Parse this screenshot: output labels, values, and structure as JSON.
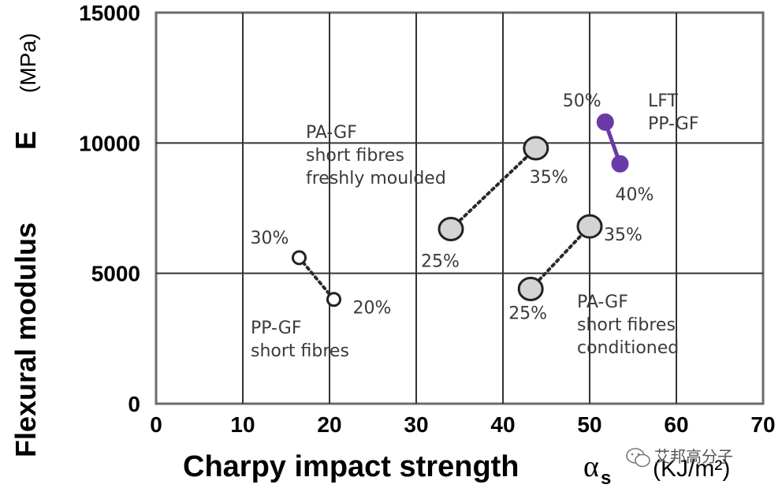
{
  "chart_data": {
    "type": "scatter",
    "xlabel": "Charpy impact strength",
    "xlabel_symbol": "α",
    "xlabel_symbol_sub": "s",
    "xlabel_unit": "(KJ/m²)",
    "ylabel": "Flexural modulus",
    "ylabel_symbol": "E",
    "ylabel_unit": "(MPa)",
    "xlim": [
      0,
      70
    ],
    "ylim": [
      0,
      15000
    ],
    "xticks": [
      0,
      10,
      20,
      30,
      40,
      50,
      60,
      70
    ],
    "yticks": [
      0,
      5000,
      10000,
      15000
    ],
    "xtick_labels": [
      "0",
      "10",
      "20",
      "30",
      "40",
      "50",
      "60",
      "70"
    ],
    "ytick_labels": [
      "0",
      "5000",
      "10000",
      "15000"
    ],
    "grid": true,
    "series": [
      {
        "name": "PP-GF short fibres",
        "label_lines": [
          "PP-GF",
          "short fibres"
        ],
        "style": "dotted",
        "color": "#2a2a2a",
        "marker_fill": "#ffffff",
        "marker_size": "small",
        "points": [
          {
            "x": 16.5,
            "y": 5600,
            "label": "30%"
          },
          {
            "x": 20.5,
            "y": 4000,
            "label": "20%"
          }
        ]
      },
      {
        "name": "PA-GF short fibres freshly moulded",
        "label_lines": [
          "PA-GF",
          "short fibres",
          "freshly moulded"
        ],
        "style": "dotted",
        "color": "#2a2a2a",
        "marker_fill": "#d4d4d4",
        "marker_size": "large",
        "points": [
          {
            "x": 34.0,
            "y": 6700,
            "label": "25%"
          },
          {
            "x": 43.8,
            "y": 9800,
            "label": "35%"
          }
        ]
      },
      {
        "name": "PA-GF short fibres conditioned",
        "label_lines": [
          "PA-GF",
          "short fibres",
          "conditioned"
        ],
        "style": "dotted",
        "color": "#2a2a2a",
        "marker_fill": "#d4d4d4",
        "marker_size": "large",
        "points": [
          {
            "x": 43.2,
            "y": 4400,
            "label": "25%"
          },
          {
            "x": 50.0,
            "y": 6800,
            "label": "35%"
          }
        ]
      },
      {
        "name": "LFT PP-GF",
        "label_lines": [
          "LFT",
          "PP-GF"
        ],
        "style": "solid",
        "color": "#6a3aa8",
        "marker_fill": "#6a3aa8",
        "marker_size": "medium",
        "points": [
          {
            "x": 51.8,
            "y": 10800,
            "label": "50%"
          },
          {
            "x": 53.5,
            "y": 9200,
            "label": "40%"
          }
        ]
      }
    ]
  },
  "watermark": {
    "icon": "wechat-icon",
    "text": "艾邦高分子"
  }
}
